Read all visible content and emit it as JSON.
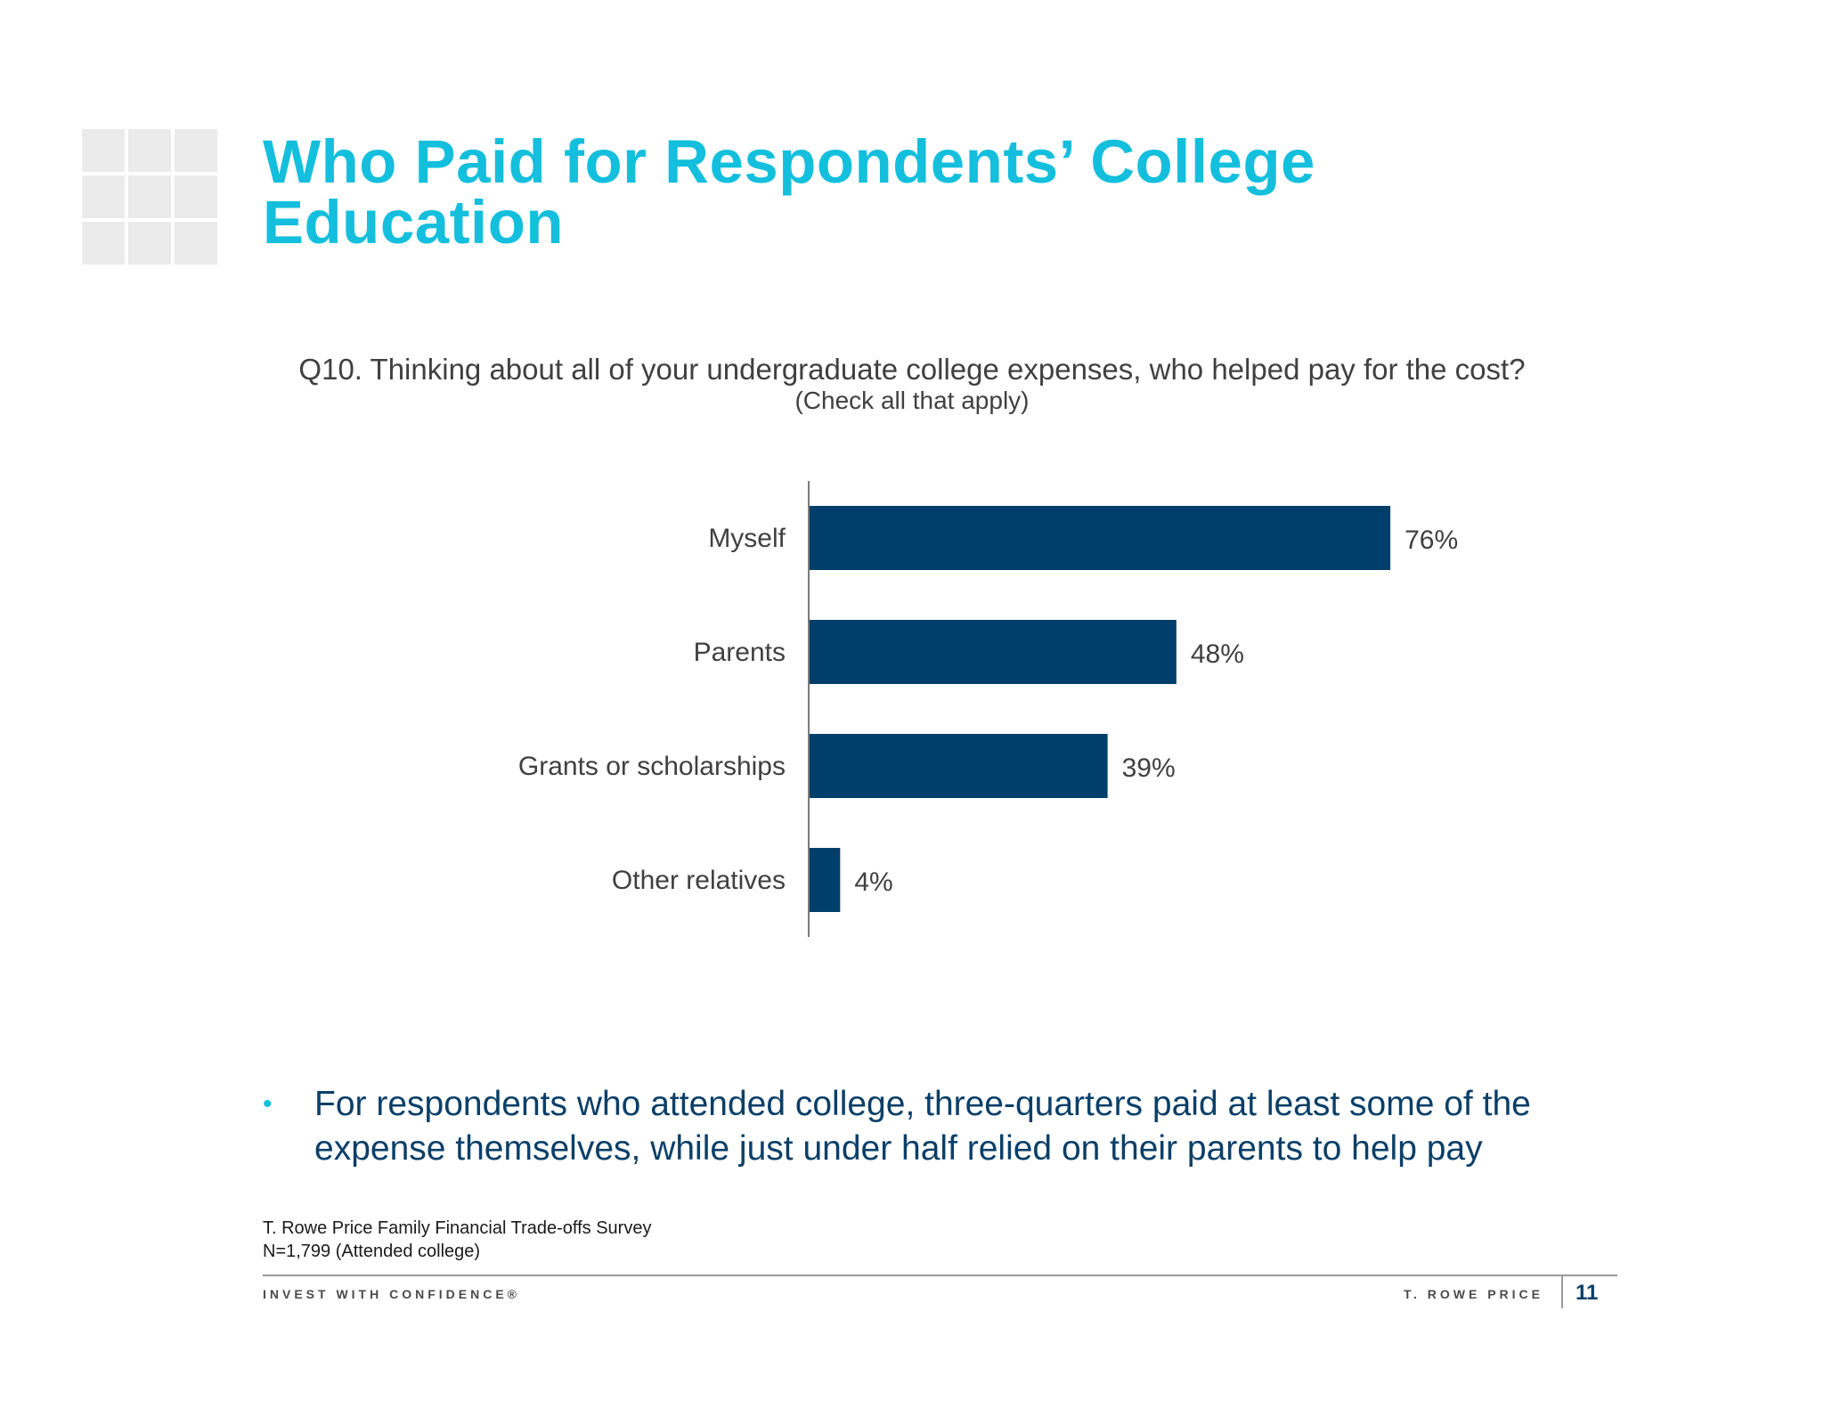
{
  "title": "Who Paid for Respondents’ College Education",
  "question": "Q10. Thinking about all of your undergraduate college expenses, who helped pay for the cost?",
  "question_note": "(Check all that apply)",
  "bullet": "For respondents who attended college, three-quarters paid at least some of the expense themselves, while just under half relied on their parents to help pay",
  "source_line1": "T. Rowe Price Family Financial Trade-offs Survey",
  "source_line2": "N=1,799 (Attended college)",
  "footer": {
    "tagline": "INVEST WITH CONFIDENCE®",
    "brand": "T. ROWE PRICE",
    "page": "11"
  },
  "colors": {
    "title": "#13bfdc",
    "bar": "#003f6b",
    "bullet_text": "#0b3f68",
    "label": "#404040"
  },
  "chart_data": {
    "type": "bar",
    "orientation": "horizontal",
    "categories": [
      "Myself",
      "Parents",
      "Grants or scholarships",
      "Other relatives"
    ],
    "values": [
      76,
      48,
      39,
      4
    ],
    "value_labels": [
      "76%",
      "48%",
      "39%",
      "4%"
    ],
    "title": "",
    "xlabel": "",
    "ylabel": "",
    "xlim": [
      0,
      100
    ],
    "grid": false,
    "legend": "none"
  }
}
